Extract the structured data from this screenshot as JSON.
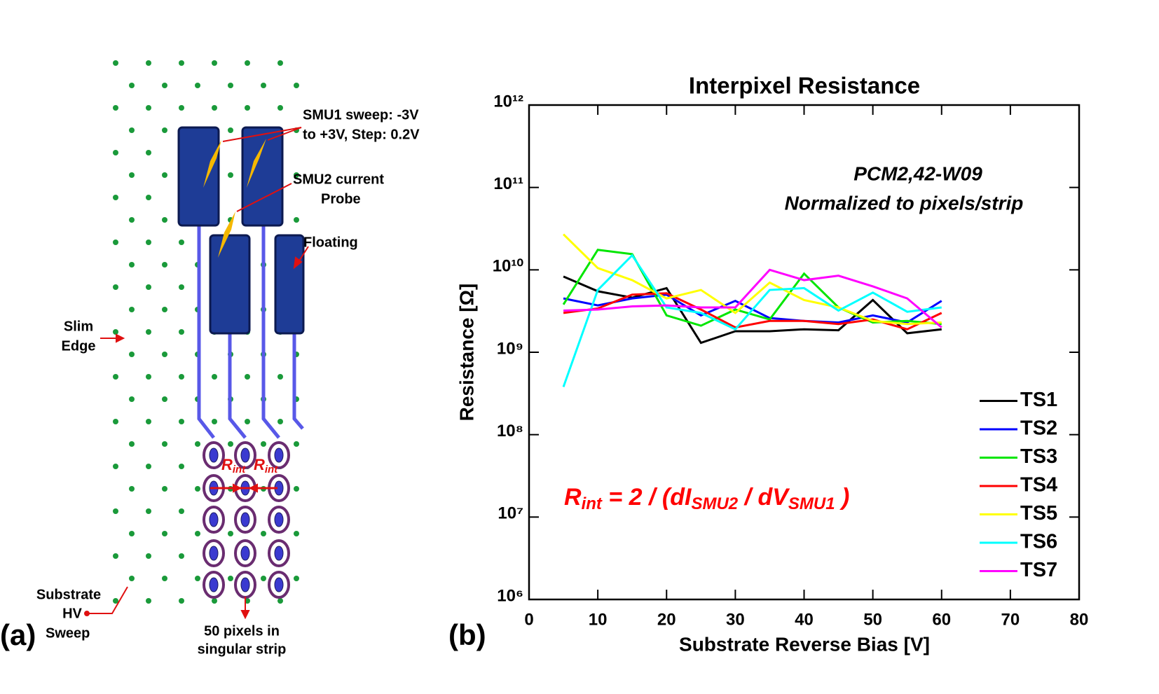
{
  "diagram": {
    "panel_label": "(a)",
    "smu1": [
      "SMU1 sweep: -3V",
      "to +3V, Step: 0.2V"
    ],
    "smu2": [
      "SMU2 current",
      "Probe"
    ],
    "floating": "Floating",
    "slim_edge": [
      "Slim",
      "Edge"
    ],
    "substrate": [
      "Substrate",
      "HV",
      "Sweep"
    ],
    "strip": [
      "50 pixels in",
      "singular strip"
    ],
    "rint": [
      [
        "R",
        "int"
      ],
      [
        "R",
        "int"
      ]
    ]
  },
  "chart_data": {
    "type": "line",
    "title": "Interpixel Resistance",
    "panel_label": "(b)",
    "xlabel": "Substrate Reverse Bias [V]",
    "ylabel": "Resistance [Ω]",
    "annotations": [
      "PCM2,42-W09",
      "Normalized to pixels/strip"
    ],
    "formula": [
      "R",
      "int",
      " = 2 / (dI",
      "SMU2",
      " / dV",
      "SMU1",
      " )"
    ],
    "formula_color": "#ff0000",
    "yscale": "log",
    "legend": "lower right",
    "xlim": [
      0,
      80
    ],
    "xticks": [
      0,
      10,
      20,
      30,
      40,
      50,
      60,
      70,
      80
    ],
    "ylim": [
      1000000,
      1000000000000
    ],
    "yticks": [
      {
        "value": 1000000,
        "label": "10⁶"
      },
      {
        "value": 10000000,
        "label": "10⁷"
      },
      {
        "value": 100000000,
        "label": "10⁸"
      },
      {
        "value": 1000000000,
        "label": "10⁹"
      },
      {
        "value": 10000000000,
        "label": "10¹⁰"
      },
      {
        "value": 100000000000,
        "label": "10¹¹"
      },
      {
        "value": 1000000000000,
        "label": "10¹²"
      }
    ],
    "x": [
      5,
      10,
      15,
      20,
      25,
      30,
      35,
      40,
      45,
      50,
      55,
      60
    ],
    "series": [
      {
        "name": "TS1",
        "color": "#000000",
        "values": [
          8300000000.0,
          5500000000.0,
          4600000000.0,
          6000000000.0,
          1300000000.0,
          1800000000.0,
          1800000000.0,
          1900000000.0,
          1850000000.0,
          4300000000.0,
          1700000000.0,
          1900000000.0
        ]
      },
      {
        "name": "TS2",
        "color": "#0000ff",
        "values": [
          4500000000.0,
          3700000000.0,
          4500000000.0,
          5000000000.0,
          2800000000.0,
          4200000000.0,
          2600000000.0,
          2400000000.0,
          2300000000.0,
          2800000000.0,
          2300000000.0,
          4200000000.0
        ]
      },
      {
        "name": "TS3",
        "color": "#00e600",
        "values": [
          3800000000.0,
          17500000000.0,
          15500000000.0,
          2800000000.0,
          2100000000.0,
          3300000000.0,
          2500000000.0,
          9000000000.0,
          3500000000.0,
          2300000000.0,
          2400000000.0,
          2200000000.0
        ]
      },
      {
        "name": "TS4",
        "color": "#ff0000",
        "values": [
          3000000000.0,
          3400000000.0,
          5000000000.0,
          5200000000.0,
          3300000000.0,
          2000000000.0,
          2400000000.0,
          2400000000.0,
          2200000000.0,
          2500000000.0,
          1900000000.0,
          3000000000.0
        ]
      },
      {
        "name": "TS5",
        "color": "#ffff00",
        "values": [
          27000000000.0,
          10500000000.0,
          7500000000.0,
          4500000000.0,
          5700000000.0,
          3000000000.0,
          7000000000.0,
          4300000000.0,
          3500000000.0,
          2400000000.0,
          2200000000.0,
          2300000000.0
        ]
      },
      {
        "name": "TS6",
        "color": "#00ffff",
        "values": [
          380000000.0,
          5700000000.0,
          15000000000.0,
          3500000000.0,
          3000000000.0,
          1900000000.0,
          5700000000.0,
          6000000000.0,
          3200000000.0,
          5300000000.0,
          3100000000.0,
          3500000000.0
        ]
      },
      {
        "name": "TS7",
        "color": "#ff00ff",
        "values": [
          3200000000.0,
          3300000000.0,
          3600000000.0,
          3700000000.0,
          3500000000.0,
          3500000000.0,
          10000000000.0,
          7500000000.0,
          8500000000.0,
          6300000000.0,
          4500000000.0,
          2000000000.0
        ]
      }
    ]
  }
}
